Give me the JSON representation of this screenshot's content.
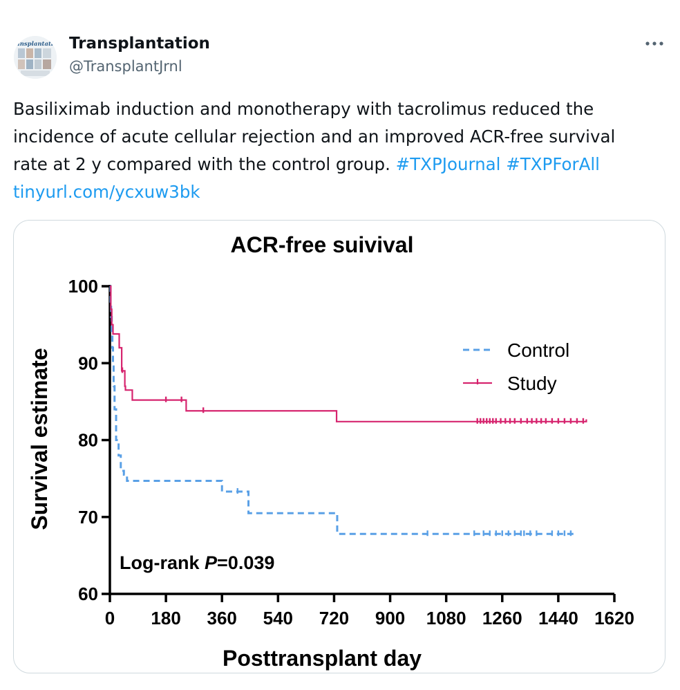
{
  "author": {
    "name": "Transplantation",
    "handle": "@TransplantJrnl",
    "avatar_text": "Transplantation",
    "avatar_icon": "journal-cover-icon"
  },
  "more_icon": "more-horizontal-icon",
  "tweet": {
    "line1": "Basiliximab induction and monotherapy with tacrolimus reduced the",
    "line2": "incidence of acute cellular rejection and  an improved ACR-free survival",
    "line3_text": "rate at 2 y compared with the control group.  ",
    "hashtag1": "#TXPJournal",
    "hashtag2": "#TXPForAll",
    "link": "tinyurl.com/ycxuw3bk"
  },
  "colors": {
    "link": "#1d9bf0",
    "control": "#5aa0e6",
    "study": "#d6246e"
  },
  "chart_data": {
    "type": "line",
    "title": "ACR-free suivival",
    "xlabel": "Posttransplant day",
    "ylabel": "Survival estimate",
    "xlim": [
      0,
      1620
    ],
    "ylim": [
      60,
      100
    ],
    "xticks": [
      0,
      180,
      360,
      540,
      720,
      900,
      1080,
      1260,
      1440,
      1620
    ],
    "yticks": [
      60,
      70,
      80,
      90,
      100
    ],
    "legend_position": "top-right",
    "annotation": {
      "prefix": "Log-rank ",
      "italic": "P",
      "suffix": "=0.039"
    },
    "series": [
      {
        "name": "Control",
        "style": "dashed",
        "steps": [
          [
            0,
            100
          ],
          [
            2,
            98
          ],
          [
            4,
            96
          ],
          [
            6,
            94
          ],
          [
            8,
            92
          ],
          [
            10,
            90
          ],
          [
            12,
            87
          ],
          [
            15,
            84
          ],
          [
            20,
            80
          ],
          [
            28,
            78
          ],
          [
            35,
            76
          ],
          [
            45,
            75.5
          ],
          [
            55,
            74.7
          ],
          [
            360,
            73.3
          ],
          [
            400,
            73.3
          ],
          [
            445,
            70.5
          ],
          [
            715,
            70.5
          ],
          [
            730,
            67.8
          ],
          [
            1490,
            68.0
          ]
        ],
        "censor": [
          410,
          1020,
          1170,
          1200,
          1220,
          1240,
          1260,
          1280,
          1300,
          1320,
          1330,
          1350,
          1370,
          1420,
          1440,
          1460,
          1480
        ]
      },
      {
        "name": "Study",
        "style": "solid",
        "steps": [
          [
            0,
            100
          ],
          [
            3,
            97
          ],
          [
            6,
            95
          ],
          [
            10,
            93.8
          ],
          [
            30,
            93.8
          ],
          [
            30,
            92
          ],
          [
            35,
            92
          ],
          [
            38,
            89
          ],
          [
            45,
            89
          ],
          [
            48,
            87
          ],
          [
            50,
            86.5
          ],
          [
            70,
            86.5
          ],
          [
            72,
            85.2
          ],
          [
            240,
            85.2
          ],
          [
            245,
            83.8
          ],
          [
            725,
            83.8
          ],
          [
            728,
            82.4
          ],
          [
            1530,
            82.7
          ]
        ],
        "censor": [
          40,
          180,
          230,
          300,
          1180,
          1190,
          1200,
          1210,
          1220,
          1230,
          1240,
          1255,
          1270,
          1285,
          1300,
          1320,
          1340,
          1355,
          1370,
          1385,
          1400,
          1420,
          1440,
          1460,
          1480,
          1500,
          1520
        ]
      }
    ]
  }
}
